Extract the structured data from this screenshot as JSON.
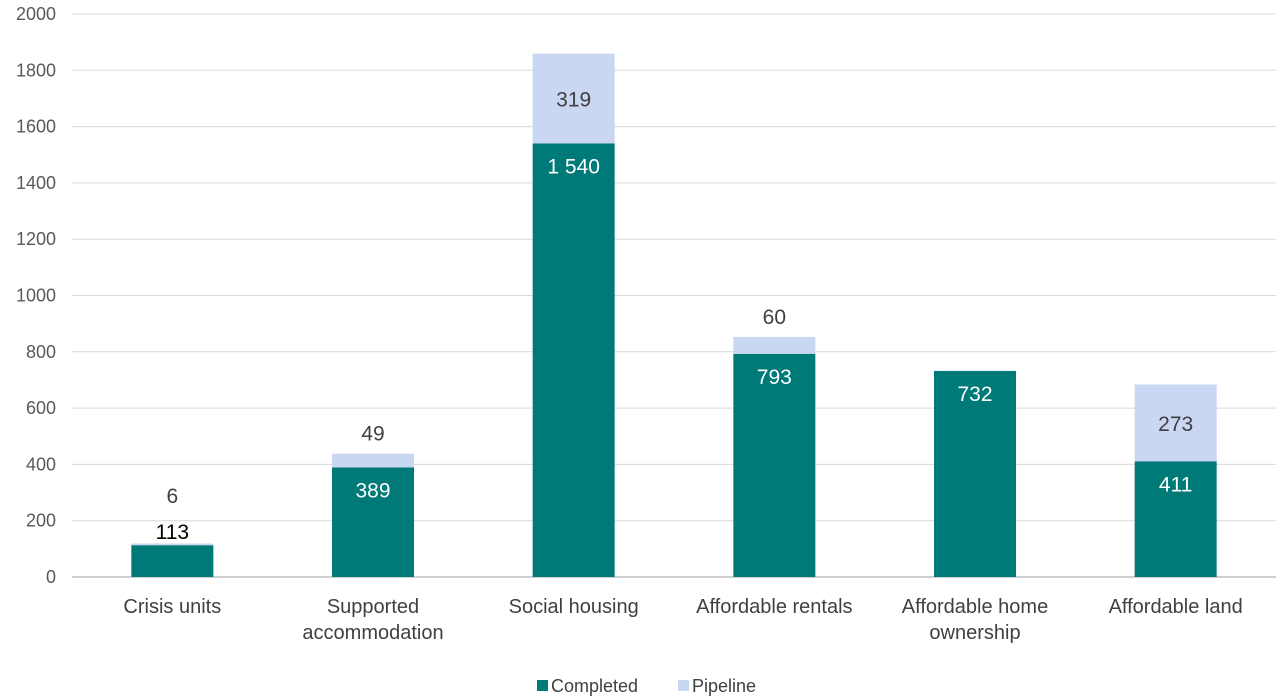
{
  "chart_data": {
    "type": "bar",
    "stacked": true,
    "title": "",
    "xlabel": "",
    "ylabel": "",
    "ylim": [
      0,
      2000
    ],
    "yticks": [
      0,
      200,
      400,
      600,
      800,
      1000,
      1200,
      1400,
      1600,
      1800,
      2000
    ],
    "grid": true,
    "legend_position": "bottom",
    "categories": [
      [
        "Crisis units"
      ],
      [
        "Supported",
        "accommodation"
      ],
      [
        "Social housing"
      ],
      [
        "Affordable rentals"
      ],
      [
        "Affordable home",
        "ownership"
      ],
      [
        "Affordable land"
      ]
    ],
    "series": [
      {
        "name": "Completed",
        "color": "#007A78",
        "values": [
          113,
          389,
          1540,
          793,
          732,
          411
        ],
        "labels": [
          "113",
          "389",
          "1 540",
          "793",
          "732",
          "411"
        ]
      },
      {
        "name": "Pipeline",
        "color": "#C9D7F2",
        "values": [
          6,
          49,
          319,
          60,
          0,
          273
        ],
        "labels": [
          "6",
          "49",
          "319",
          "60",
          "",
          "273"
        ]
      }
    ]
  }
}
